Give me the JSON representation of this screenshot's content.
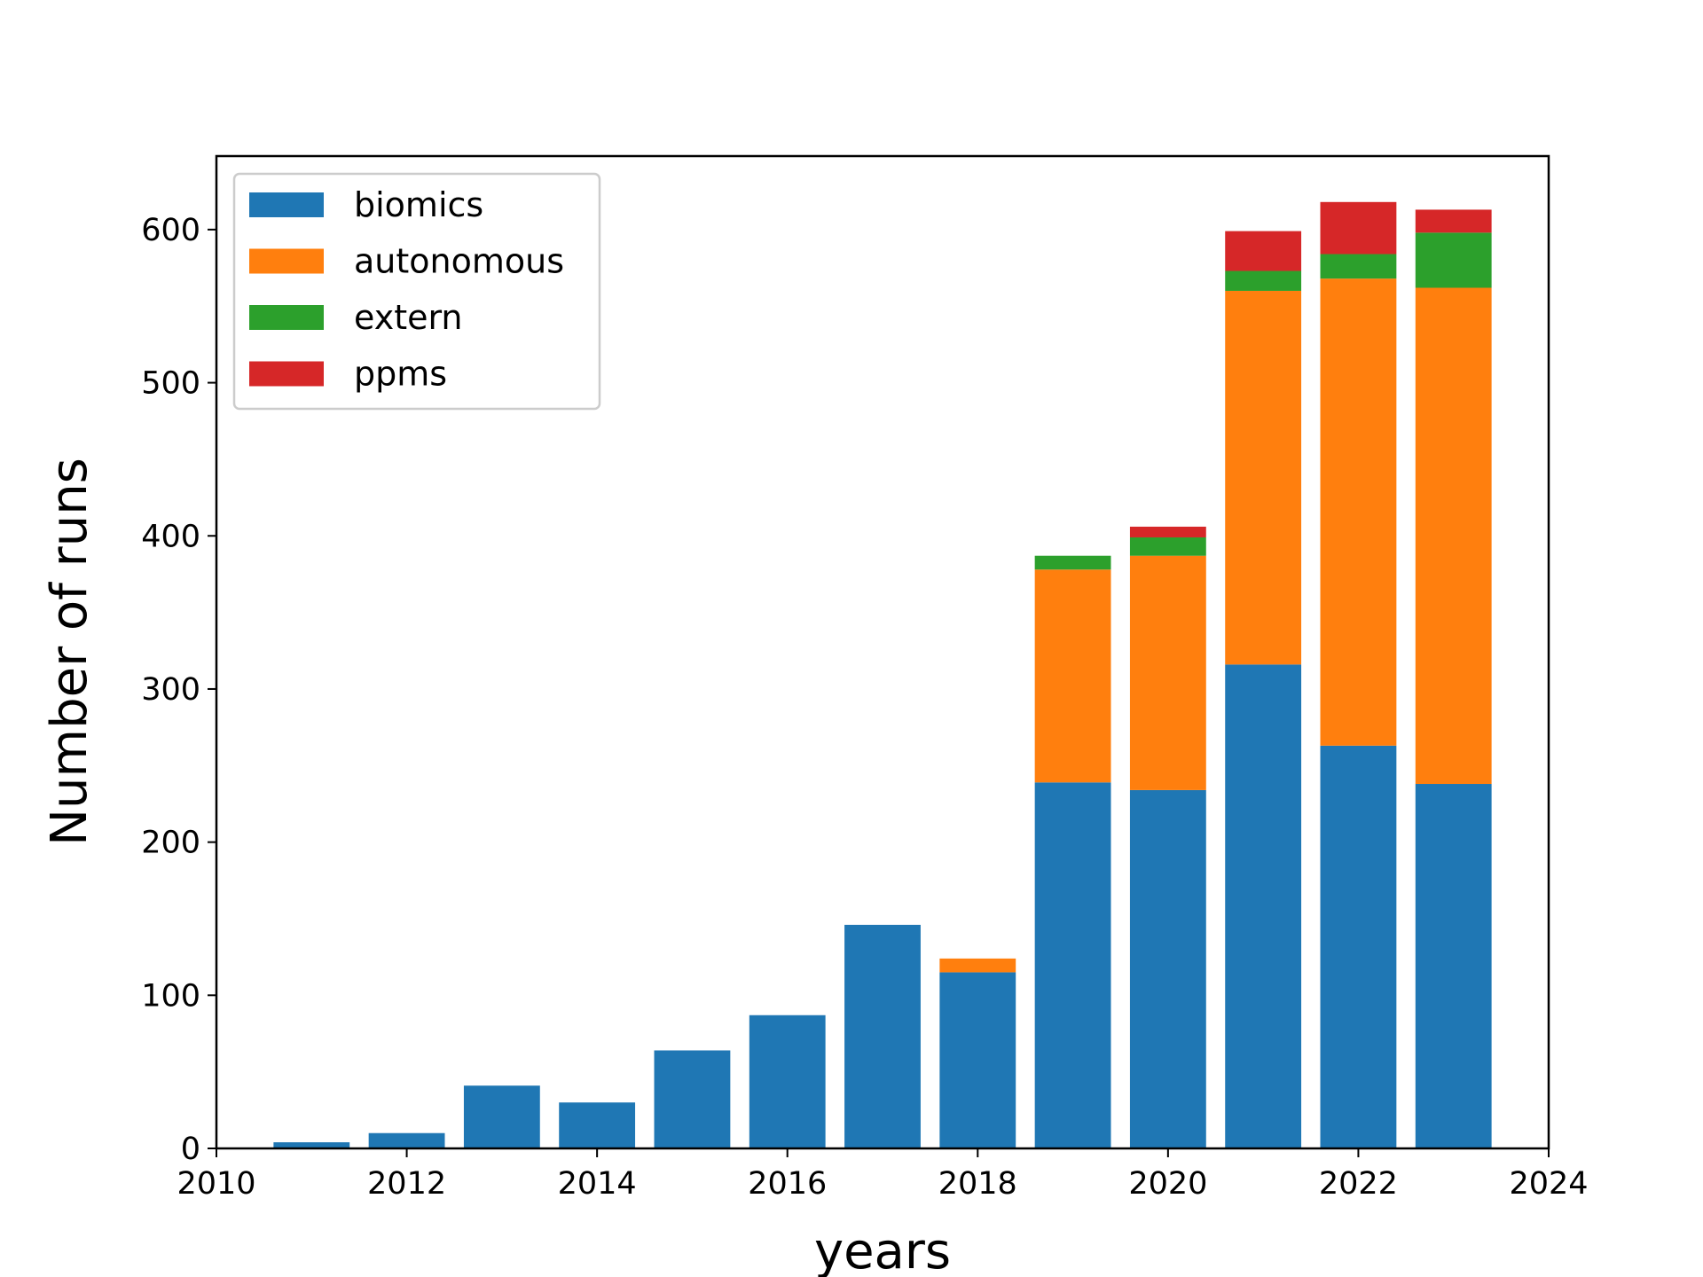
{
  "chart_data": {
    "type": "bar",
    "stacked": true,
    "xlabel": "years",
    "ylabel": "Number of runs",
    "xlim": [
      2010,
      2024
    ],
    "ylim": [
      0,
      648
    ],
    "xticks": [
      "2010",
      "2012",
      "2014",
      "2016",
      "2018",
      "2020",
      "2022",
      "2024"
    ],
    "yticks": [
      "0",
      "100",
      "200",
      "300",
      "400",
      "500",
      "600"
    ],
    "grid": false,
    "legend_position": "top-left",
    "x": [
      2011,
      2012,
      2013,
      2014,
      2015,
      2016,
      2017,
      2018,
      2019,
      2020,
      2021,
      2022,
      2023
    ],
    "series": [
      {
        "name": "biomics",
        "color": "#1f77b4",
        "values": [
          4,
          10,
          41,
          30,
          64,
          87,
          146,
          115,
          239,
          234,
          316,
          263,
          238
        ]
      },
      {
        "name": "autonomous",
        "color": "#ff7f0e",
        "values": [
          0,
          0,
          0,
          0,
          0,
          0,
          0,
          9,
          139,
          153,
          244,
          305,
          324
        ]
      },
      {
        "name": "extern",
        "color": "#2ca02c",
        "values": [
          0,
          0,
          0,
          0,
          0,
          0,
          0,
          0,
          9,
          12,
          13,
          16,
          36
        ]
      },
      {
        "name": "ppms",
        "color": "#d62728",
        "values": [
          0,
          0,
          0,
          0,
          0,
          0,
          0,
          0,
          0,
          7,
          26,
          34,
          15
        ]
      }
    ]
  }
}
